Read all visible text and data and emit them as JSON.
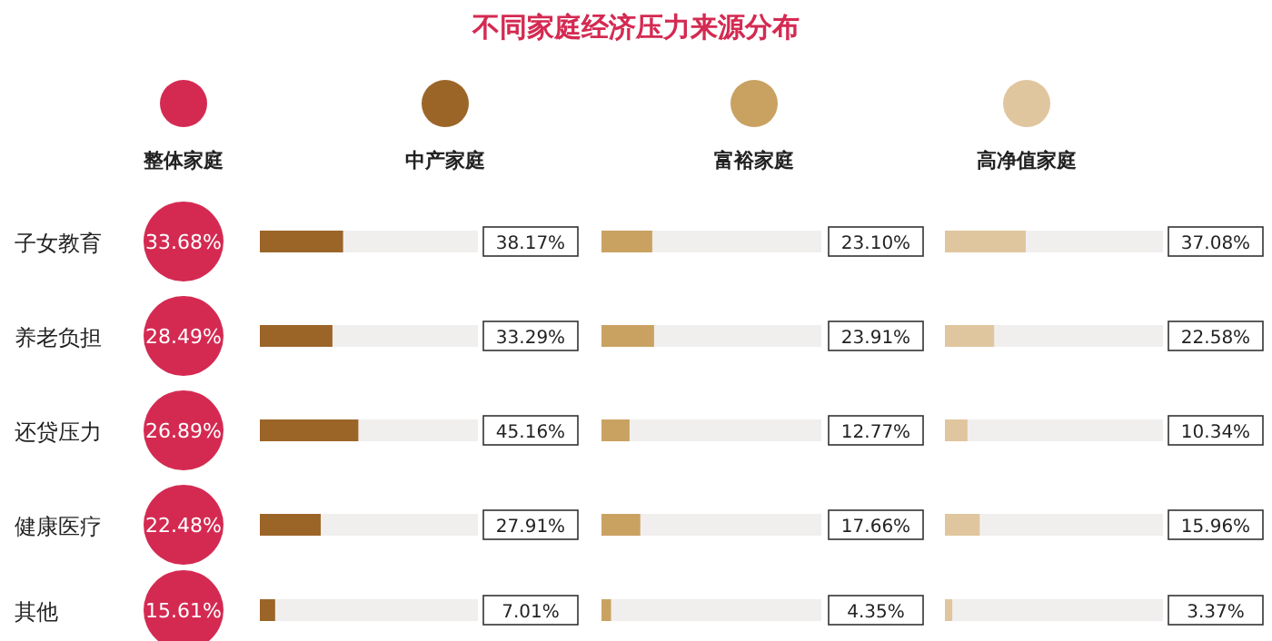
{
  "chart_data": [
    {
      "type": "other",
      "title": "不同家庭经济压力来源分布"
    },
    {
      "type": "other",
      "subtitle": "整体家庭",
      "color": "#d42a52",
      "categories": [
        "子女教育",
        "养老负担",
        "还贷压力",
        "健康医疗",
        "其他"
      ],
      "values": [
        33.68,
        28.49,
        26.89,
        22.48,
        15.61
      ],
      "value_labels": [
        "33.68%",
        "28.49%",
        "26.89%",
        "22.48%",
        "15.61%"
      ]
    },
    {
      "type": "bar",
      "orientation": "horizontal",
      "title": "中产家庭",
      "color": "#9c6528",
      "values": [
        38.17,
        33.29,
        45.16,
        27.91,
        7.01
      ],
      "value_labels": [
        "38.17%",
        "33.29%",
        "45.16%",
        "27.91%",
        "7.01%"
      ],
      "xlim": [
        0,
        100
      ]
    },
    {
      "type": "bar",
      "orientation": "horizontal",
      "title": "富裕家庭",
      "color": "#c9a262",
      "values": [
        23.1,
        23.91,
        12.77,
        17.66,
        4.35
      ],
      "value_labels": [
        "23.10%",
        "23.91%",
        "12.77%",
        "17.66%",
        "4.35%"
      ],
      "xlim": [
        0,
        100
      ]
    },
    {
      "type": "bar",
      "orientation": "horizontal",
      "title": "高净值家庭",
      "color": "#e0c69e",
      "values": [
        37.08,
        22.58,
        10.34,
        15.96,
        3.37
      ],
      "value_labels": [
        "37.08%",
        "22.58%",
        "10.34%",
        "15.96%",
        "3.37%"
      ],
      "xlim": [
        0,
        100
      ]
    }
  ]
}
